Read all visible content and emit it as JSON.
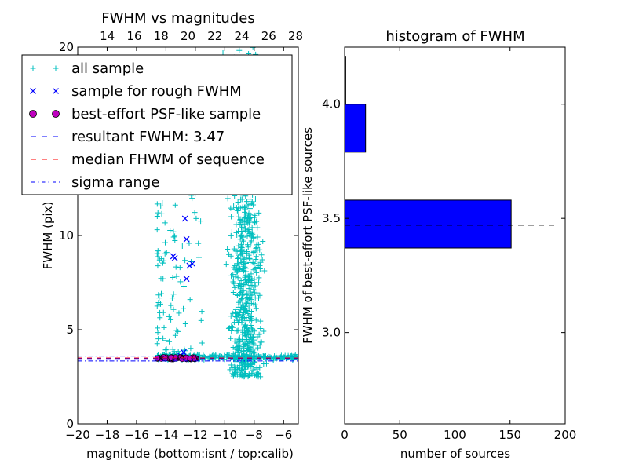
{
  "chart_data": [
    {
      "type": "scatter",
      "title": "FWHM vs magnitudes",
      "xlabel": "magnitude (bottom:isnt / top:calib)",
      "ylabel": "FWHM (pix)",
      "xlim": [
        -20,
        -5
      ],
      "ylim": [
        0,
        20
      ],
      "xticks": [
        -20,
        -18,
        -16,
        -14,
        -12,
        -10,
        -8,
        -6
      ],
      "xtick_labels": [
        "−20",
        "−18",
        "−16",
        "−14",
        "−12",
        "−10",
        "−8",
        "−6"
      ],
      "yticks": [
        0,
        5,
        10
      ],
      "ytick_labels": [
        "0",
        "5",
        "10"
      ],
      "top_axis": {
        "xlim": [
          11.8,
          28.2
        ],
        "ticks": [
          14,
          16,
          18,
          20,
          22,
          24,
          26,
          28
        ],
        "labels": [
          "14",
          "16",
          "18",
          "20",
          "22",
          "24",
          "26",
          "28"
        ],
        "extra_label": "20"
      },
      "legend": {
        "placement": "top-left",
        "entries": [
          {
            "label": "all sample",
            "marker": "+",
            "color": "#00bfbf"
          },
          {
            "label": "sample for rough FWHM",
            "marker": "x",
            "color": "#0000ff"
          },
          {
            "label": "best-effort PSF-like sample",
            "marker": "o",
            "color": "#bf00bf"
          },
          {
            "label": "resultant FWHM: 3.47",
            "line": "dashed",
            "color": "#0000ff"
          },
          {
            "label": "median FHWM of sequence",
            "line": "dashed",
            "color": "#ff0000"
          },
          {
            "label": "sigma range",
            "line": "dashdot",
            "color": "#0000ff"
          }
        ]
      },
      "series": [
        {
          "name": "all sample",
          "color": "#00bfbf",
          "clusters": [
            {
              "x_range": [
                -14.6,
                -11.8
              ],
              "y_range": [
                3.3,
                3.8
              ],
              "n": 180
            },
            {
              "x_range": [
                -11.8,
                -5.0
              ],
              "y_range": [
                3.3,
                3.8
              ],
              "n": 160
            },
            {
              "x_range": [
                -14.6,
                -11.5
              ],
              "y_range": [
                3.8,
                17.5
              ],
              "n": 130
            },
            {
              "x_range": [
                -10.5,
                -6.0
              ],
              "y_range": [
                2.5,
                11.5
              ],
              "n": 520
            },
            {
              "x_range": [
                -10.5,
                -7.5
              ],
              "y_range": [
                11.5,
                20
              ],
              "n": 90
            }
          ]
        },
        {
          "name": "sample for rough FWHM",
          "color": "#0000ff",
          "points": [
            [
              -12.7,
              10.9
            ],
            [
              -12.6,
              9.8
            ],
            [
              -13.5,
              8.9
            ],
            [
              -13.4,
              8.8
            ],
            [
              -12.4,
              8.4
            ],
            [
              -12.2,
              8.5
            ],
            [
              -12.6,
              7.7
            ],
            [
              -12.8,
              3.8
            ],
            [
              -13.0,
              3.6
            ]
          ]
        },
        {
          "name": "best-effort PSF-like sample",
          "color": "#bf00bf",
          "x_range": [
            -14.6,
            -11.8
          ],
          "y_range": [
            3.42,
            3.55
          ],
          "n": 60
        }
      ],
      "hlines": [
        {
          "y": 3.47,
          "style": "dashed",
          "color": "#0000ff"
        },
        {
          "y": 3.5,
          "style": "dashed",
          "color": "#ff0000"
        },
        {
          "y": 3.6,
          "style": "dashdot",
          "color": "#0000ff"
        },
        {
          "y": 3.34,
          "style": "dashdot",
          "color": "#0000ff"
        }
      ]
    },
    {
      "type": "bar",
      "orientation": "horizontal",
      "title": "histogram of FWHM",
      "xlabel": "number of sources",
      "ylabel": "FWHM of best-effort PSF-like sources",
      "xlim": [
        0,
        200
      ],
      "ylim": [
        2.6,
        4.25
      ],
      "xticks": [
        0,
        50,
        100,
        150,
        200
      ],
      "xtick_labels": [
        "0",
        "50",
        "100",
        "150",
        "200"
      ],
      "yticks": [
        3.0,
        3.5,
        4.0
      ],
      "ytick_labels": [
        "3.0",
        "3.5",
        "4.0"
      ],
      "bins": [
        {
          "from": 3.37,
          "to": 3.58,
          "count": 151
        },
        {
          "from": 3.58,
          "to": 3.79,
          "count": 0
        },
        {
          "from": 3.79,
          "to": 4.0,
          "count": 19
        },
        {
          "from": 4.0,
          "to": 4.21,
          "count": 1
        }
      ],
      "bar_color": "#0000ff",
      "reference_line": {
        "y": 3.47,
        "x_range": [
          0,
          185
        ],
        "style": "dashed",
        "color": "#000000"
      }
    }
  ]
}
